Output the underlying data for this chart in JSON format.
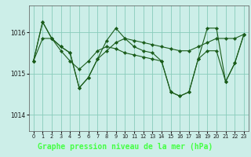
{
  "title": "Graphe pression niveau de la mer (hPa)",
  "bg_color": "#cceee8",
  "label_bg": "#2d6b2d",
  "label_fg": "#44ff44",
  "grid_color": "#88ccbb",
  "line_color": "#1a5c1a",
  "marker_color": "#1a5c1a",
  "xlim": [
    -0.5,
    23.5
  ],
  "ylim": [
    1013.6,
    1016.65
  ],
  "yticks": [
    1014,
    1015,
    1016
  ],
  "xticks": [
    0,
    1,
    2,
    3,
    4,
    5,
    6,
    7,
    8,
    9,
    10,
    11,
    12,
    13,
    14,
    15,
    16,
    17,
    18,
    19,
    20,
    21,
    22,
    23
  ],
  "series": [
    [
      1015.3,
      1016.25,
      1015.85,
      1015.65,
      1015.5,
      1014.65,
      1014.9,
      1015.35,
      1015.55,
      1015.75,
      1015.85,
      1015.8,
      1015.75,
      1015.7,
      1015.65,
      1015.6,
      1015.55,
      1015.55,
      1015.65,
      1015.75,
      1015.85,
      1015.85,
      1015.85,
      1015.95
    ],
    [
      1015.3,
      1016.25,
      1015.85,
      1015.65,
      1015.5,
      1014.65,
      1014.9,
      1015.35,
      1015.8,
      1016.1,
      1015.85,
      1015.65,
      1015.55,
      1015.5,
      1015.3,
      1014.55,
      1014.45,
      1014.55,
      1015.35,
      1016.1,
      1016.1,
      1014.8,
      1015.25,
      1015.95
    ],
    [
      1015.3,
      1015.85,
      1015.85,
      1015.55,
      1015.3,
      1015.1,
      1015.3,
      1015.55,
      1015.65,
      1015.6,
      1015.5,
      1015.45,
      1015.4,
      1015.35,
      1015.3,
      1014.55,
      1014.45,
      1014.55,
      1015.35,
      1015.55,
      1015.55,
      1014.8,
      1015.25,
      1015.95
    ]
  ]
}
